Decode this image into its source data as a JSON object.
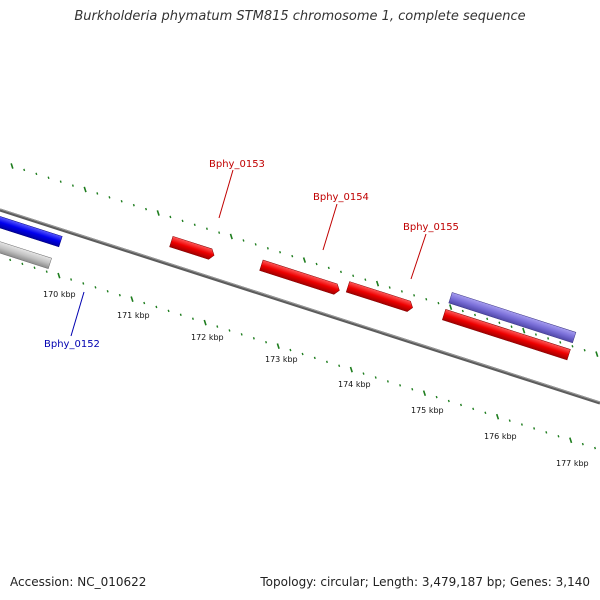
{
  "title": "Burkholderia phymatum STM815 chromosome 1, complete sequence",
  "footer": {
    "accession": "Accession: NC_010622",
    "summary": "Topology: circular; Length: 3,479,187 bp; Genes: 3,140"
  },
  "colors": {
    "backbone": "#777777",
    "ticks": "#1e7d1e",
    "forward_gene": "#ee0000",
    "reverse_gene": "#0000ee",
    "other_gene": "#bdbdbd",
    "purple_gene": "#7a6fd8",
    "forward_label": "#c00000",
    "reverse_label": "#0000b0"
  },
  "scale": {
    "tick_labels": [
      "170 kbp",
      "171 kbp",
      "172 kbp",
      "173 kbp",
      "174 kbp",
      "175 kbp",
      "176 kbp",
      "177 kbp"
    ]
  },
  "gene_labels": [
    {
      "text": "Bphy_0152",
      "strand": "reverse"
    },
    {
      "text": "Bphy_0153",
      "strand": "forward"
    },
    {
      "text": "Bphy_0154",
      "strand": "forward"
    },
    {
      "text": "Bphy_0155",
      "strand": "forward"
    }
  ]
}
